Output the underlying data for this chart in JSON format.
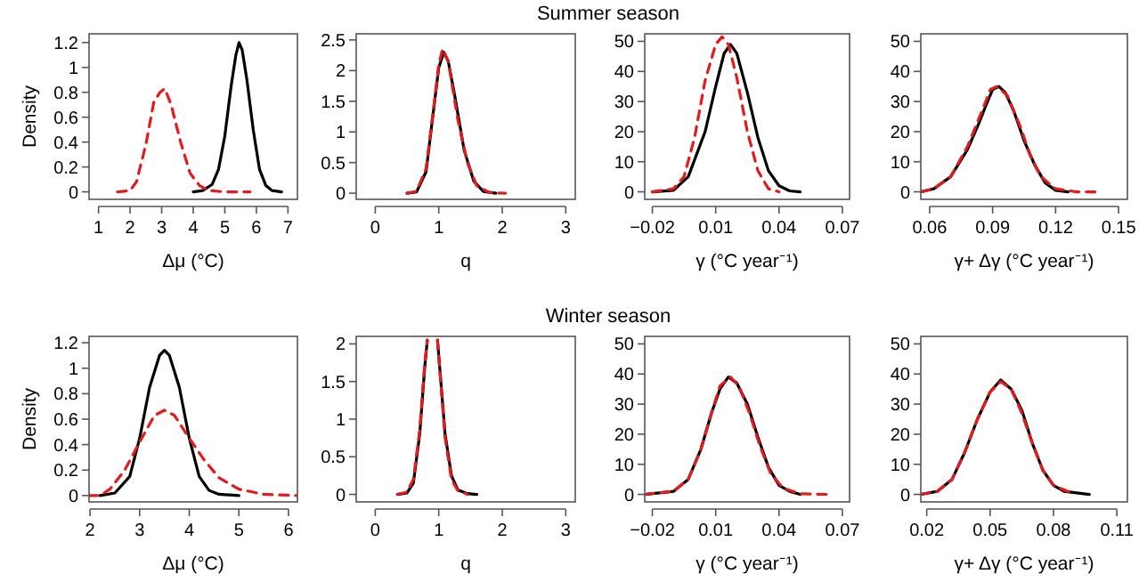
{
  "chart_data": [
    {
      "type": "other",
      "title": "Summer season"
    },
    {
      "type": "line",
      "xlabel": "Δμ (°C)",
      "ylabel": "Density",
      "xlim": [
        0.7,
        7.3
      ],
      "ylim": [
        -0.06,
        1.27
      ],
      "xticks": [
        1,
        2,
        3,
        4,
        5,
        6,
        7
      ],
      "yticks": [
        0,
        0.2,
        0.4,
        0.6,
        0.8,
        1,
        1.2
      ],
      "series": [
        {
          "color": "#000000",
          "line_style": "solid",
          "x": [
            4.0,
            4.3,
            4.6,
            4.8,
            5.0,
            5.2,
            5.35,
            5.45,
            5.55,
            5.7,
            5.9,
            6.1,
            6.3,
            6.5,
            6.8
          ],
          "values": [
            0,
            0.01,
            0.06,
            0.18,
            0.45,
            0.85,
            1.1,
            1.2,
            1.14,
            0.9,
            0.5,
            0.18,
            0.05,
            0.01,
            0
          ]
        },
        {
          "color": "#e41a1c",
          "line_style": "dashed",
          "x": [
            1.6,
            2.0,
            2.2,
            2.5,
            2.75,
            2.95,
            3.1,
            3.3,
            3.6,
            3.9,
            4.2,
            4.5,
            5.0,
            5.8
          ],
          "values": [
            0,
            0.01,
            0.08,
            0.38,
            0.72,
            0.8,
            0.83,
            0.7,
            0.4,
            0.15,
            0.05,
            0.01,
            0,
            0
          ]
        }
      ]
    },
    {
      "type": "line",
      "xlabel": "q",
      "xlim": [
        -0.3,
        3.15
      ],
      "ylim": [
        -0.1,
        2.6
      ],
      "xticks": [
        0,
        1,
        2,
        3
      ],
      "yticks": [
        0,
        0.5,
        1,
        1.5,
        2,
        2.5
      ],
      "series": [
        {
          "color": "#000000",
          "line_style": "solid",
          "x": [
            0.5,
            0.65,
            0.8,
            0.9,
            1.0,
            1.08,
            1.15,
            1.25,
            1.4,
            1.55,
            1.7,
            1.9
          ],
          "values": [
            0,
            0.02,
            0.35,
            1.2,
            2.05,
            2.3,
            2.15,
            1.6,
            0.7,
            0.2,
            0.03,
            0
          ]
        },
        {
          "color": "#e41a1c",
          "line_style": "dashed",
          "x": [
            0.5,
            0.65,
            0.8,
            0.92,
            1.0,
            1.06,
            1.15,
            1.3,
            1.45,
            1.6,
            1.8,
            2.05
          ],
          "values": [
            0,
            0.03,
            0.4,
            1.4,
            2.1,
            2.35,
            2.15,
            1.2,
            0.5,
            0.12,
            0.01,
            0
          ]
        }
      ]
    },
    {
      "type": "line",
      "xlabel": "γ (°C year⁻¹)",
      "xlim": [
        -0.0236,
        0.0734
      ],
      "ylim": [
        -2.5,
        52.5
      ],
      "xticks": [
        {
          "value": -0.02,
          "label": "−0.02"
        },
        0.01,
        0.04,
        0.07
      ],
      "yticks": [
        0,
        10,
        20,
        30,
        40,
        50
      ],
      "series": [
        {
          "color": "#000000",
          "line_style": "solid",
          "x": [
            -0.02,
            -0.01,
            -0.003,
            0.005,
            0.01,
            0.014,
            0.017,
            0.02,
            0.025,
            0.03,
            0.035,
            0.04,
            0.045,
            0.05
          ],
          "values": [
            0,
            0.5,
            5,
            20,
            35,
            46,
            49,
            46,
            33,
            18,
            7,
            2,
            0.3,
            0
          ]
        },
        {
          "color": "#e41a1c",
          "line_style": "dashed",
          "x": [
            -0.02,
            -0.01,
            -0.005,
            0,
            0.005,
            0.01,
            0.013,
            0.016,
            0.02,
            0.025,
            0.03,
            0.035,
            0.04
          ],
          "values": [
            0,
            1,
            5,
            18,
            37,
            49,
            51.5,
            49,
            38,
            20,
            7,
            1,
            0
          ]
        }
      ]
    },
    {
      "type": "line",
      "xlabel": "γ+ Δγ (°C year⁻¹)",
      "xlim": [
        0.0558,
        0.1542
      ],
      "ylim": [
        -2.5,
        52.5
      ],
      "xticks": [
        0.06,
        0.09,
        0.12,
        0.15
      ],
      "yticks": [
        0,
        10,
        20,
        30,
        40,
        50
      ],
      "series": [
        {
          "color": "#000000",
          "line_style": "solid",
          "x": [
            0.056,
            0.062,
            0.07,
            0.078,
            0.083,
            0.087,
            0.09,
            0.093,
            0.096,
            0.1,
            0.105,
            0.11,
            0.115,
            0.12,
            0.126
          ],
          "values": [
            0,
            1,
            5,
            14,
            22,
            29,
            34,
            35,
            33,
            27,
            17,
            9,
            3,
            0.5,
            0
          ]
        },
        {
          "color": "#e41a1c",
          "line_style": "dashed",
          "x": [
            0.056,
            0.062,
            0.07,
            0.078,
            0.085,
            0.089,
            0.092,
            0.097,
            0.103,
            0.108,
            0.113,
            0.12,
            0.13,
            0.139
          ],
          "values": [
            0,
            1,
            5,
            15,
            27,
            34,
            35,
            32,
            22,
            12,
            5,
            1,
            0,
            0
          ]
        }
      ]
    },
    {
      "type": "other",
      "title": "Winter season"
    },
    {
      "type": "line",
      "xlabel": "Δμ (°C)",
      "ylabel": "Density",
      "xlim": [
        1.98,
        6.18
      ],
      "ylim": [
        -0.05,
        1.25
      ],
      "xticks": [
        2,
        3,
        4,
        5,
        6
      ],
      "yticks": [
        0,
        0.2,
        0.4,
        0.6,
        0.8,
        1,
        1.2
      ],
      "series": [
        {
          "color": "#000000",
          "line_style": "solid",
          "x": [
            2.2,
            2.5,
            2.8,
            3.0,
            3.2,
            3.4,
            3.5,
            3.6,
            3.8,
            4.0,
            4.2,
            4.4,
            4.6,
            5.0
          ],
          "values": [
            0,
            0.02,
            0.15,
            0.45,
            0.85,
            1.1,
            1.14,
            1.1,
            0.85,
            0.45,
            0.15,
            0.04,
            0.01,
            0
          ]
        },
        {
          "color": "#e41a1c",
          "line_style": "dashed",
          "x": [
            1.98,
            2.2,
            2.4,
            2.7,
            3.0,
            3.3,
            3.5,
            3.7,
            4.0,
            4.3,
            4.6,
            5.0,
            5.5,
            6.18
          ],
          "values": [
            0,
            0,
            0.05,
            0.2,
            0.42,
            0.63,
            0.67,
            0.63,
            0.45,
            0.28,
            0.14,
            0.05,
            0.01,
            0
          ]
        }
      ]
    },
    {
      "type": "line",
      "xlabel": "q",
      "xlim": [
        -0.3,
        3.15
      ],
      "ylim": [
        -0.1,
        2.1
      ],
      "xticks": [
        0,
        1,
        2,
        3
      ],
      "yticks": [
        0,
        0.5,
        1,
        1.5,
        2
      ],
      "series": [
        {
          "color": "#000000",
          "line_style": "solid",
          "x": [
            0.35,
            0.5,
            0.6,
            0.7,
            0.78,
            0.82,
            0.9,
            0.98,
            1.1,
            1.2,
            1.3,
            1.45,
            1.6
          ],
          "values": [
            0,
            0.02,
            0.15,
            0.8,
            1.7,
            2.05,
            null,
            2.05,
            0.8,
            0.25,
            0.06,
            0.01,
            0
          ]
        },
        {
          "color": "#e41a1c",
          "line_style": "dashed",
          "x": [
            0.35,
            0.5,
            0.6,
            0.7,
            0.78,
            0.82,
            0.9,
            0.98,
            1.1,
            1.2,
            1.3,
            1.45
          ],
          "values": [
            0,
            0.03,
            0.2,
            0.85,
            1.75,
            2.05,
            null,
            2.05,
            0.75,
            0.2,
            0.05,
            0
          ]
        }
      ]
    },
    {
      "type": "line",
      "xlabel": "γ (°C year⁻¹)",
      "xlim": [
        -0.0236,
        0.0734
      ],
      "ylim": [
        -2.5,
        52.5
      ],
      "xticks": [
        {
          "value": -0.02,
          "label": "−0.02"
        },
        0.01,
        0.04,
        0.07
      ],
      "yticks": [
        0,
        10,
        20,
        30,
        40,
        50
      ],
      "series": [
        {
          "color": "#000000",
          "line_style": "solid",
          "x": [
            -0.0236,
            -0.01,
            -0.003,
            0.003,
            0.008,
            0.012,
            0.016,
            0.02,
            0.025,
            0.03,
            0.035,
            0.04,
            0.045,
            0.05
          ],
          "values": [
            0,
            1,
            5,
            15,
            27,
            35,
            39,
            37,
            30,
            19,
            9,
            3,
            1,
            0
          ]
        },
        {
          "color": "#e41a1c",
          "line_style": "dashed",
          "x": [
            -0.0236,
            -0.01,
            -0.003,
            0.003,
            0.008,
            0.012,
            0.017,
            0.021,
            0.026,
            0.031,
            0.036,
            0.042,
            0.05,
            0.063
          ],
          "values": [
            0,
            1,
            5,
            15,
            27,
            36,
            39,
            36,
            27,
            16,
            7,
            2,
            0.2,
            0
          ]
        }
      ]
    },
    {
      "type": "line",
      "xlabel": "γ+ Δγ (°C year⁻¹)",
      "xlim": [
        0.0172,
        0.115
      ],
      "ylim": [
        -2.5,
        52.5
      ],
      "xticks": [
        0.02,
        0.05,
        0.08,
        0.11
      ],
      "yticks": [
        0,
        10,
        20,
        30,
        40,
        50
      ],
      "series": [
        {
          "color": "#000000",
          "line_style": "solid",
          "x": [
            0.0172,
            0.025,
            0.032,
            0.038,
            0.044,
            0.05,
            0.055,
            0.06,
            0.065,
            0.07,
            0.075,
            0.08,
            0.085,
            0.097
          ],
          "values": [
            0,
            1,
            5,
            14,
            25,
            34,
            38,
            35,
            28,
            17,
            8,
            3,
            1,
            0
          ]
        },
        {
          "color": "#e41a1c",
          "line_style": "dashed",
          "x": [
            0.0172,
            0.025,
            0.032,
            0.038,
            0.044,
            0.05,
            0.055,
            0.06,
            0.065,
            0.07,
            0.075,
            0.08,
            0.09
          ],
          "values": [
            0,
            1,
            5,
            14,
            25,
            34,
            37.5,
            35,
            27,
            17,
            8,
            3,
            0
          ]
        }
      ]
    }
  ]
}
